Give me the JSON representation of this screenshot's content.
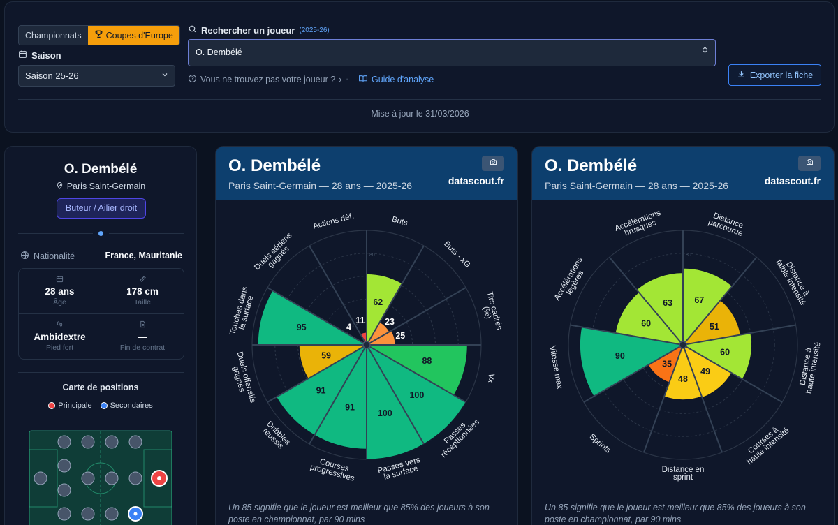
{
  "filters": {
    "tabs": [
      {
        "label": "Championnats",
        "active": false
      },
      {
        "label": "Coupes d'Europe",
        "active": true
      }
    ],
    "season_label": "Saison",
    "season_value": "Saison 25-26",
    "search_label": "Rechercher un joueur",
    "search_badge": "(2025-26)",
    "search_value": "O. Dembélé",
    "not_found": "Vous ne trouvez pas votre joueur ?",
    "guide": "Guide d'analyse",
    "export": "Exporter la fiche",
    "updated": "Mise à jour le 31/03/2026"
  },
  "player": {
    "name": "O. Dembélé",
    "club": "Paris Saint-Germain",
    "role": "Buteur / Ailier droit",
    "nationality_label": "Nationalité",
    "nationality": "France, Mauritanie",
    "age": "28 ans",
    "age_label": "Âge",
    "height": "178 cm",
    "height_label": "Taille",
    "foot": "Ambidextre",
    "foot_label": "Pied fort",
    "contract": "—",
    "contract_label": "Fin de contrat",
    "positions_title": "Carte de positions",
    "legend_main": "Principale",
    "legend_secondary": "Secondaires"
  },
  "cards": [
    {
      "title": "O. Dembélé",
      "subtitle": "Paris Saint-Germain — 28 ans — 2025-26",
      "brand": "datascout.fr",
      "footnote": "Un 85 signifie que le joueur est meilleur que 85% des joueurs à son poste en championnat, par 90 mins",
      "ring_label": "80",
      "slices": [
        {
          "label": "Buts",
          "value": 62,
          "color": "#a3e635"
        },
        {
          "label": "Buts - xG",
          "value": 23,
          "color": "#fb923c"
        },
        {
          "label": "Tirs cadrés (%)",
          "value": 25,
          "color": "#fb923c"
        },
        {
          "label": "xA",
          "value": 88,
          "color": "#22c55e"
        },
        {
          "label": "Passes réceptionnées",
          "value": 100,
          "color": "#10b981"
        },
        {
          "label": "Passes vers la surface",
          "value": 100,
          "color": "#10b981"
        },
        {
          "label": "Courses progressives",
          "value": 91,
          "color": "#10b981"
        },
        {
          "label": "Dribbles réussis",
          "value": 91,
          "color": "#10b981"
        },
        {
          "label": "Duels offensifs gagnés",
          "value": 59,
          "color": "#eab308"
        },
        {
          "label": "Touches dans la surface",
          "value": 95,
          "color": "#10b981"
        },
        {
          "label": "Duels aériens gagnés",
          "value": 4,
          "color": "#ef4444"
        },
        {
          "label": "Actions déf.",
          "value": 11,
          "color": "#ef4444"
        }
      ]
    },
    {
      "title": "O. Dembélé",
      "subtitle": "Paris Saint-Germain — 28 ans — 2025-26",
      "brand": "datascout.fr",
      "footnote": "Un 85 signifie que le joueur est meilleur que 85% des joueurs à son poste en championnat, par 90 mins",
      "ring_label": "80",
      "slices": [
        {
          "label": "Distance parcourue",
          "value": 67,
          "color": "#a3e635"
        },
        {
          "label": "Distance à faible intensité",
          "value": 51,
          "color": "#eab308"
        },
        {
          "label": "Distance à haute intensité",
          "value": 60,
          "color": "#a3e635"
        },
        {
          "label": "Courses à haute intensité",
          "value": 49,
          "color": "#facc15"
        },
        {
          "label": "Distance en sprint",
          "value": 48,
          "color": "#facc15"
        },
        {
          "label": "Sprints",
          "value": 35,
          "color": "#f97316"
        },
        {
          "label": "Vitesse max",
          "value": 90,
          "color": "#10b981"
        },
        {
          "label": "Accélérations légères",
          "value": 60,
          "color": "#a3e635"
        },
        {
          "label": "Accélérations brusques",
          "value": 63,
          "color": "#a3e635"
        }
      ]
    }
  ]
}
